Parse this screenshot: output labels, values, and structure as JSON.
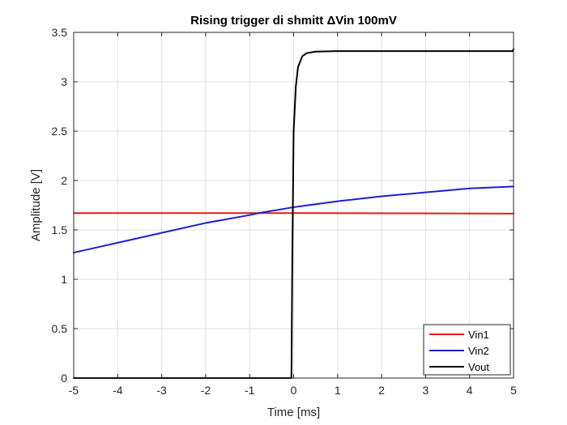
{
  "chart_data": {
    "type": "line",
    "title": "Rising trigger di shmitt ΔVin 100mV",
    "xlabel": "Time [ms]",
    "ylabel": "Amplitude [V]",
    "xlim": [
      -5,
      5
    ],
    "ylim": [
      0,
      3.5
    ],
    "xticks": [
      -5,
      -4,
      -3,
      -2,
      -1,
      0,
      1,
      2,
      3,
      4,
      5
    ],
    "xtick_labels": [
      "-5",
      "-4",
      "-3",
      "-2",
      "-1",
      "0",
      "1",
      "2",
      "3",
      "4",
      "5"
    ],
    "yticks": [
      0,
      0.5,
      1,
      1.5,
      2,
      2.5,
      3,
      3.5
    ],
    "ytick_labels": [
      "0",
      "0.5",
      "1",
      "1.5",
      "2",
      "2.5",
      "3",
      "3.5"
    ],
    "grid": true,
    "legend_position": "bottom-right",
    "series": [
      {
        "name": "Vin1",
        "color": "#e41a1c",
        "points": [
          [
            -5,
            1.67
          ],
          [
            -2.5,
            1.67
          ],
          [
            0,
            1.67
          ],
          [
            2.5,
            1.668
          ],
          [
            5,
            1.665
          ]
        ]
      },
      {
        "name": "Vin2",
        "color": "#1f1fd1",
        "points": [
          [
            -5,
            1.27
          ],
          [
            -4,
            1.37
          ],
          [
            -3,
            1.47
          ],
          [
            -2,
            1.57
          ],
          [
            -1,
            1.65
          ],
          [
            -0.8,
            1.67
          ],
          [
            0,
            1.73
          ],
          [
            1,
            1.79
          ],
          [
            2,
            1.84
          ],
          [
            3,
            1.88
          ],
          [
            4,
            1.92
          ],
          [
            5,
            1.94
          ]
        ]
      },
      {
        "name": "Vout",
        "color": "#000000",
        "points": [
          [
            -5,
            0.0
          ],
          [
            -0.5,
            0.0
          ],
          [
            -0.1,
            0.0
          ],
          [
            -0.05,
            0.0
          ],
          [
            -0.03,
            1.2
          ],
          [
            0.0,
            2.5
          ],
          [
            0.05,
            2.95
          ],
          [
            0.1,
            3.15
          ],
          [
            0.2,
            3.26
          ],
          [
            0.3,
            3.29
          ],
          [
            0.5,
            3.305
          ],
          [
            1,
            3.31
          ],
          [
            3,
            3.31
          ],
          [
            4.98,
            3.31
          ],
          [
            5,
            3.33
          ]
        ]
      }
    ]
  }
}
